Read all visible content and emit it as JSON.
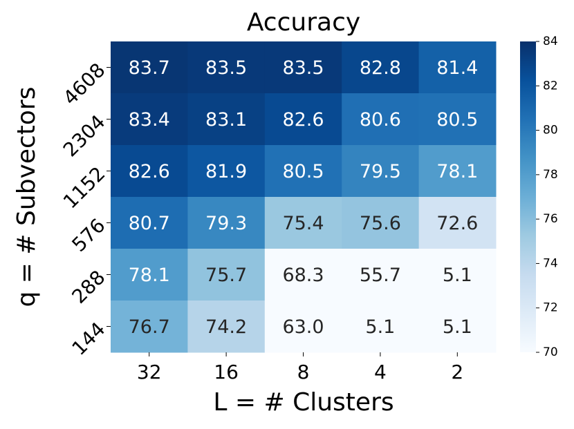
{
  "chart_data": {
    "type": "heatmap",
    "title": "Accuracy",
    "x_label": "L = # Clusters",
    "y_label": "q = # Subvectors",
    "x_categories": [
      "32",
      "16",
      "8",
      "4",
      "2"
    ],
    "y_categories": [
      "4608",
      "2304",
      "1152",
      "576",
      "288",
      "144"
    ],
    "values": [
      [
        83.7,
        83.5,
        83.5,
        82.8,
        81.4
      ],
      [
        83.4,
        83.1,
        82.6,
        80.6,
        80.5
      ],
      [
        82.6,
        81.9,
        80.5,
        79.5,
        78.1
      ],
      [
        80.7,
        79.3,
        75.4,
        75.6,
        72.6
      ],
      [
        78.1,
        75.7,
        68.3,
        55.7,
        5.1
      ],
      [
        76.7,
        74.2,
        63,
        5.1,
        5.1
      ]
    ],
    "value_labels": [
      [
        "83.7",
        "83.5",
        "83.5",
        "82.8",
        "81.4"
      ],
      [
        "83.4",
        "83.1",
        "82.6",
        "80.6",
        "80.5"
      ],
      [
        "82.6",
        "81.9",
        "80.5",
        "79.5",
        "78.1"
      ],
      [
        "80.7",
        "79.3",
        "75.4",
        "75.6",
        "72.6"
      ],
      [
        "78.1",
        "75.7",
        "68.3",
        "55.7",
        "5.1"
      ],
      [
        "76.7",
        "74.2",
        "63.0",
        "5.1",
        "5.1"
      ]
    ],
    "colormap": [
      "#f7fbff",
      "#deebf7",
      "#c6dbef",
      "#9ecae1",
      "#6baed6",
      "#4292c6",
      "#2171b5",
      "#08519c",
      "#08306b"
    ],
    "clim": [
      70,
      84
    ],
    "cticks": [
      70,
      72,
      74,
      76,
      78,
      80,
      82,
      84
    ]
  }
}
